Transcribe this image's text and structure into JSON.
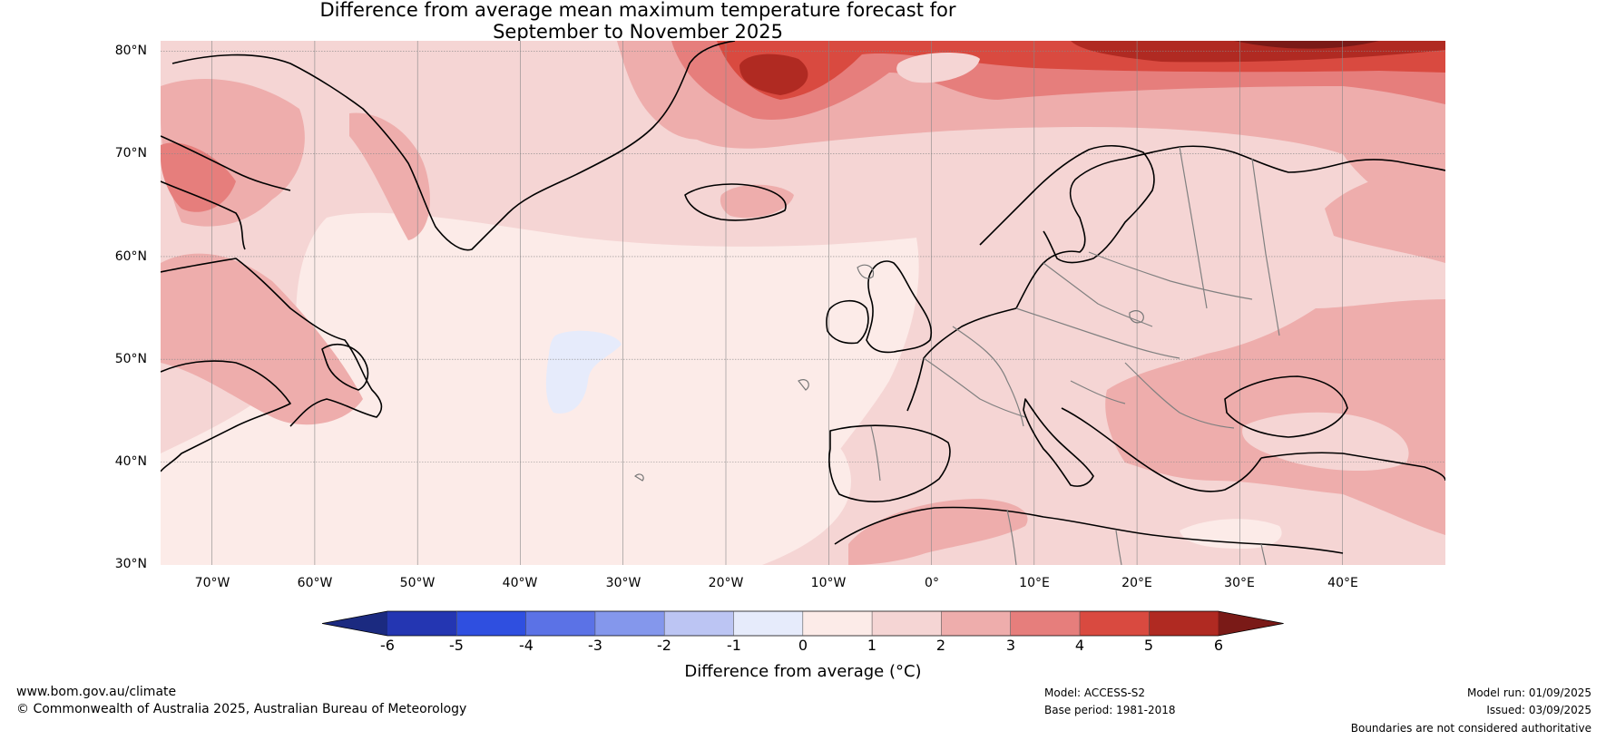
{
  "title": {
    "line1": "Difference from average mean maximum temperature forecast for",
    "line2": "September to November 2025"
  },
  "map": {
    "lat_labels": [
      "80°N",
      "70°N",
      "60°N",
      "50°N",
      "40°N",
      "30°N"
    ],
    "lon_labels": [
      "70°W",
      "60°W",
      "50°W",
      "40°W",
      "30°W",
      "20°W",
      "10°W",
      "0°",
      "10°E",
      "20°E",
      "30°E",
      "40°E"
    ],
    "extent": {
      "lon_min": -75,
      "lon_max": 50,
      "lat_min": 30,
      "lat_max": 81
    }
  },
  "colorbar": {
    "ticks": [
      "-6",
      "-5",
      "-4",
      "-3",
      "-2",
      "-1",
      "0",
      "1",
      "2",
      "3",
      "4",
      "5",
      "6"
    ],
    "colors": [
      "#1b2a80",
      "#2436b2",
      "#2f4fe0",
      "#5b72e6",
      "#8497ec",
      "#bcc5f3",
      "#e6ebfb",
      "#fcebe8",
      "#f5d5d4",
      "#eeadac",
      "#e67e7c",
      "#d94a40",
      "#b02a22",
      "#7a1a17"
    ],
    "label": "Difference from average (°C)"
  },
  "footer": {
    "website": "www.bom.gov.au/climate",
    "copyright": "© Commonwealth of Australia 2025, Australian Bureau of Meteorology",
    "model": "Model: ACCESS-S2",
    "base_period": "Base period: 1981-2018",
    "model_run": "Model run: 01/09/2025",
    "issued": "Issued: 03/09/2025",
    "disclaimer": "Boundaries are not considered authoritative"
  }
}
